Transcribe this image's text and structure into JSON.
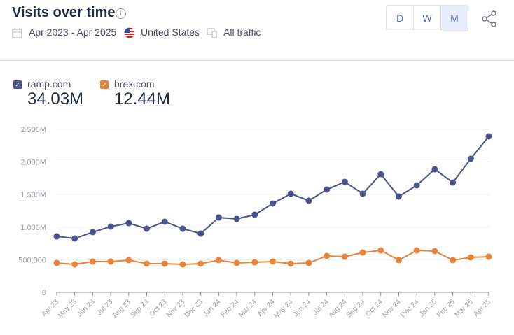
{
  "header": {
    "title": "Visits over time",
    "date_range": "Apr 2023 - Apr 2025",
    "country": "United States",
    "traffic": "All traffic",
    "granularity": [
      "D",
      "W",
      "M"
    ],
    "selected_granularity": "M"
  },
  "icons": {
    "info": "info-icon",
    "calendar": "calendar-icon",
    "flag": "us-flag-icon",
    "devices": "devices-icon",
    "share": "share-icon"
  },
  "legend": [
    {
      "name": "ramp.com",
      "total": "34.03M",
      "color": "#4a528f"
    },
    {
      "name": "brex.com",
      "total": "12.44M",
      "color": "#e8833a"
    }
  ],
  "chart_data": {
    "type": "line",
    "x": [
      "Apr 23",
      "May 23",
      "Jun 23",
      "Jul 23",
      "Aug 23",
      "Sep 23",
      "Oct 23",
      "Nov 23",
      "Dec 23",
      "Jan 24",
      "Feb 24",
      "Mar 24",
      "Apr 24",
      "May 24",
      "Jun 24",
      "Jul 24",
      "Aug 24",
      "Sep 24",
      "Oct 24",
      "Nov 24",
      "Dec 24",
      "Jan 25",
      "Feb 25",
      "Mar 25",
      "Apr 25"
    ],
    "series": [
      {
        "name": "ramp.com",
        "color": "#4a528f",
        "values": [
          858000,
          826000,
          923000,
          1009000,
          1062000,
          976000,
          1084000,
          976000,
          901000,
          1148000,
          1127000,
          1191000,
          1363000,
          1513000,
          1406000,
          1577000,
          1695000,
          1513000,
          1813000,
          1470000,
          1642000,
          1888000,
          1685000,
          2049000,
          2393000
        ]
      },
      {
        "name": "brex.com",
        "color": "#e8833a",
        "values": [
          451000,
          429000,
          472000,
          472000,
          494000,
          440000,
          440000,
          429000,
          440000,
          494000,
          451000,
          461000,
          472000,
          440000,
          451000,
          558000,
          547000,
          612000,
          644000,
          494000,
          644000,
          633000,
          494000,
          536000,
          547000
        ]
      }
    ],
    "yticks": [
      {
        "v": 0,
        "label": "0"
      },
      {
        "v": 500000,
        "label": "500,000"
      },
      {
        "v": 1000000,
        "label": "1.000M"
      },
      {
        "v": 1500000,
        "label": "1.500M"
      },
      {
        "v": 2000000,
        "label": "2.000M"
      },
      {
        "v": 2500000,
        "label": "2.500M"
      }
    ],
    "ylim": [
      0,
      2500000
    ],
    "grid": true
  }
}
